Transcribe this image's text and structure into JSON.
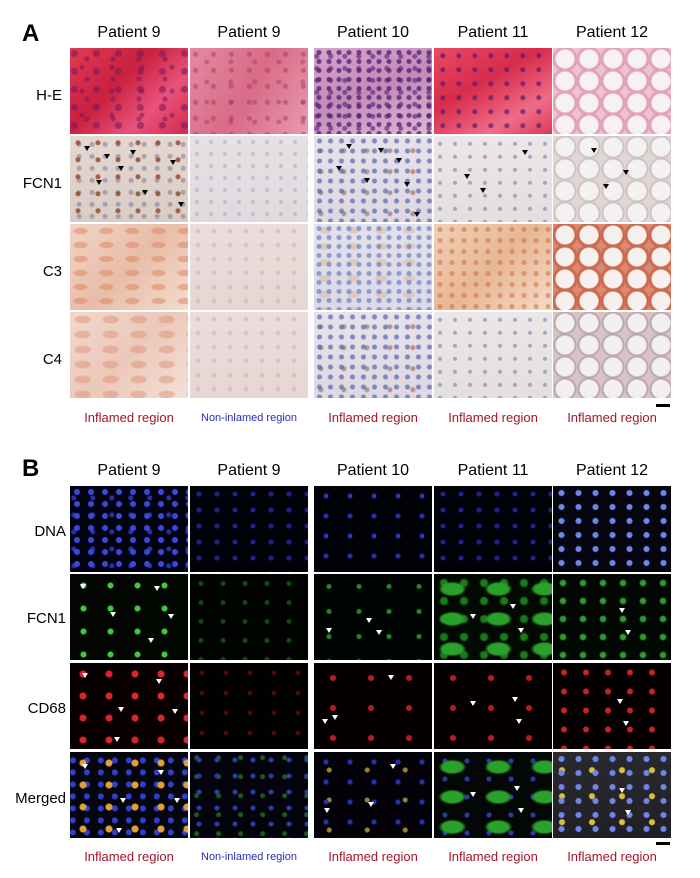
{
  "panel_a": {
    "letter": "A",
    "columns": [
      "Patient 9",
      "Patient 9",
      "Patient 10",
      "Patient 11",
      "Patient 12"
    ],
    "rows": [
      "H-E",
      "FCN1",
      "C3",
      "C4"
    ],
    "regions": [
      "Inflamed region",
      "Non-inlamed region",
      "Inflamed region",
      "Inflamed region",
      "Inflamed region"
    ]
  },
  "panel_b": {
    "letter": "B",
    "columns": [
      "Patient 9",
      "Patient 9",
      "Patient 10",
      "Patient 11",
      "Patient 12"
    ],
    "rows": [
      "DNA",
      "FCN1",
      "CD68",
      "Merged"
    ],
    "regions": [
      "Inflamed region",
      "Non-inlamed region",
      "Inflamed region",
      "Inflamed region",
      "Inflamed region"
    ]
  },
  "colors": {
    "inflamed_label": "#a3162a",
    "non_inflamed_label": "#2b2bb8"
  }
}
